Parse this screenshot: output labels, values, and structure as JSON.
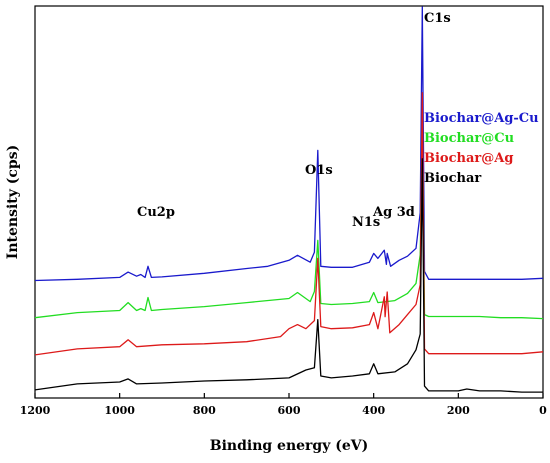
{
  "chart_data": {
    "type": "line",
    "xlabel": "Binding energy (eV)",
    "ylabel": "Intensity (cps)",
    "xlim": [
      1200,
      0
    ],
    "x_reversed": true,
    "x_ticks": [
      1200,
      1000,
      800,
      600,
      400,
      200,
      0
    ],
    "y_ticks_shown": false,
    "grid": false,
    "legend_placement": "right, below the C1s peak",
    "annotations": [
      {
        "text": "C1s",
        "x": 285
      },
      {
        "text": "O1s",
        "x": 532
      },
      {
        "text": "N1s",
        "x": 400
      },
      {
        "text": "Ag 3d",
        "x": 370
      },
      {
        "text": "Cu2p",
        "x": 933
      }
    ],
    "series": [
      {
        "name": "Biochar@Ag-Cu",
        "color": "#1a1acc",
        "offset": 3,
        "points": [
          [
            1200,
            0.8
          ],
          [
            1100,
            1.3
          ],
          [
            1000,
            2.1
          ],
          [
            980,
            4.3
          ],
          [
            960,
            2.6
          ],
          [
            950,
            3.3
          ],
          [
            940,
            2.1
          ],
          [
            933,
            6.7
          ],
          [
            925,
            2.1
          ],
          [
            900,
            2.3
          ],
          [
            800,
            3.8
          ],
          [
            700,
            5.8
          ],
          [
            650,
            6.7
          ],
          [
            600,
            9.2
          ],
          [
            580,
            11.3
          ],
          [
            550,
            8.4
          ],
          [
            540,
            12.6
          ],
          [
            532,
            55
          ],
          [
            525,
            6.7
          ],
          [
            500,
            6.3
          ],
          [
            450,
            6.3
          ],
          [
            410,
            8.4
          ],
          [
            400,
            12.1
          ],
          [
            390,
            10.0
          ],
          [
            375,
            13.4
          ],
          [
            370,
            7.5
          ],
          [
            368,
            12.1
          ],
          [
            360,
            6.7
          ],
          [
            340,
            9.2
          ],
          [
            320,
            10.9
          ],
          [
            300,
            14.2
          ],
          [
            290,
            29
          ],
          [
            285,
            140
          ],
          [
            280,
            4.6
          ],
          [
            270,
            1.3
          ],
          [
            200,
            1.3
          ],
          [
            150,
            1.3
          ],
          [
            100,
            1.3
          ],
          [
            50,
            1.3
          ],
          [
            0,
            1.7
          ]
        ]
      },
      {
        "name": "Biochar@Cu",
        "color": "#22dd22",
        "offset": 2,
        "points": [
          [
            1200,
            0.8
          ],
          [
            1100,
            2.9
          ],
          [
            1000,
            3.8
          ],
          [
            980,
            7.1
          ],
          [
            960,
            3.8
          ],
          [
            950,
            4.6
          ],
          [
            940,
            3.8
          ],
          [
            933,
            9.2
          ],
          [
            925,
            3.8
          ],
          [
            900,
            4.2
          ],
          [
            800,
            5.4
          ],
          [
            700,
            7.1
          ],
          [
            600,
            8.8
          ],
          [
            580,
            11.3
          ],
          [
            550,
            7.5
          ],
          [
            540,
            11.7
          ],
          [
            532,
            33
          ],
          [
            525,
            6.7
          ],
          [
            500,
            6.3
          ],
          [
            450,
            6.7
          ],
          [
            410,
            7.5
          ],
          [
            400,
            11.3
          ],
          [
            390,
            7.1
          ],
          [
            350,
            7.9
          ],
          [
            320,
            10.9
          ],
          [
            300,
            15.1
          ],
          [
            290,
            27
          ],
          [
            285,
            84
          ],
          [
            280,
            2.1
          ],
          [
            270,
            1.3
          ],
          [
            200,
            1.3
          ],
          [
            150,
            1.3
          ],
          [
            100,
            0.8
          ],
          [
            50,
            0.8
          ],
          [
            0,
            0.4
          ]
        ]
      },
      {
        "name": "Biochar@Ag",
        "color": "#dd1a1a",
        "offset": 1,
        "points": [
          [
            1200,
            0.8
          ],
          [
            1100,
            3.3
          ],
          [
            1000,
            4.2
          ],
          [
            980,
            7.1
          ],
          [
            960,
            4.2
          ],
          [
            900,
            5.0
          ],
          [
            800,
            5.4
          ],
          [
            700,
            6.3
          ],
          [
            620,
            8.4
          ],
          [
            600,
            11.7
          ],
          [
            580,
            13.4
          ],
          [
            560,
            11.7
          ],
          [
            540,
            15.1
          ],
          [
            532,
            41
          ],
          [
            525,
            12.6
          ],
          [
            500,
            11.7
          ],
          [
            450,
            12.1
          ],
          [
            410,
            13.4
          ],
          [
            400,
            18.4
          ],
          [
            390,
            11.7
          ],
          [
            375,
            25
          ],
          [
            373,
            16.7
          ],
          [
            368,
            27
          ],
          [
            362,
            10.0
          ],
          [
            340,
            13.4
          ],
          [
            320,
            17.6
          ],
          [
            300,
            21.8
          ],
          [
            290,
            30
          ],
          [
            285,
            110
          ],
          [
            280,
            3.3
          ],
          [
            270,
            1.3
          ],
          [
            200,
            1.3
          ],
          [
            150,
            1.3
          ],
          [
            100,
            1.3
          ],
          [
            50,
            1.3
          ],
          [
            0,
            2.1
          ]
        ]
      },
      {
        "name": "Biochar",
        "color": "#000000",
        "offset": 0,
        "points": [
          [
            1200,
            1.7
          ],
          [
            1100,
            4.2
          ],
          [
            1000,
            5.0
          ],
          [
            980,
            6.3
          ],
          [
            960,
            4.2
          ],
          [
            900,
            4.6
          ],
          [
            800,
            5.4
          ],
          [
            700,
            5.9
          ],
          [
            600,
            6.7
          ],
          [
            560,
            10.0
          ],
          [
            540,
            10.9
          ],
          [
            532,
            31
          ],
          [
            525,
            7.5
          ],
          [
            500,
            6.7
          ],
          [
            450,
            7.5
          ],
          [
            410,
            8.4
          ],
          [
            400,
            12.6
          ],
          [
            390,
            8.4
          ],
          [
            350,
            9.2
          ],
          [
            320,
            12.6
          ],
          [
            300,
            18.4
          ],
          [
            290,
            25
          ],
          [
            285,
            98
          ],
          [
            280,
            3.3
          ],
          [
            270,
            1.3
          ],
          [
            200,
            1.3
          ],
          [
            180,
            2.1
          ],
          [
            150,
            1.3
          ],
          [
            100,
            1.3
          ],
          [
            50,
            0.8
          ],
          [
            0,
            0.8
          ]
        ]
      }
    ],
    "series_offset_step": 15.5
  }
}
